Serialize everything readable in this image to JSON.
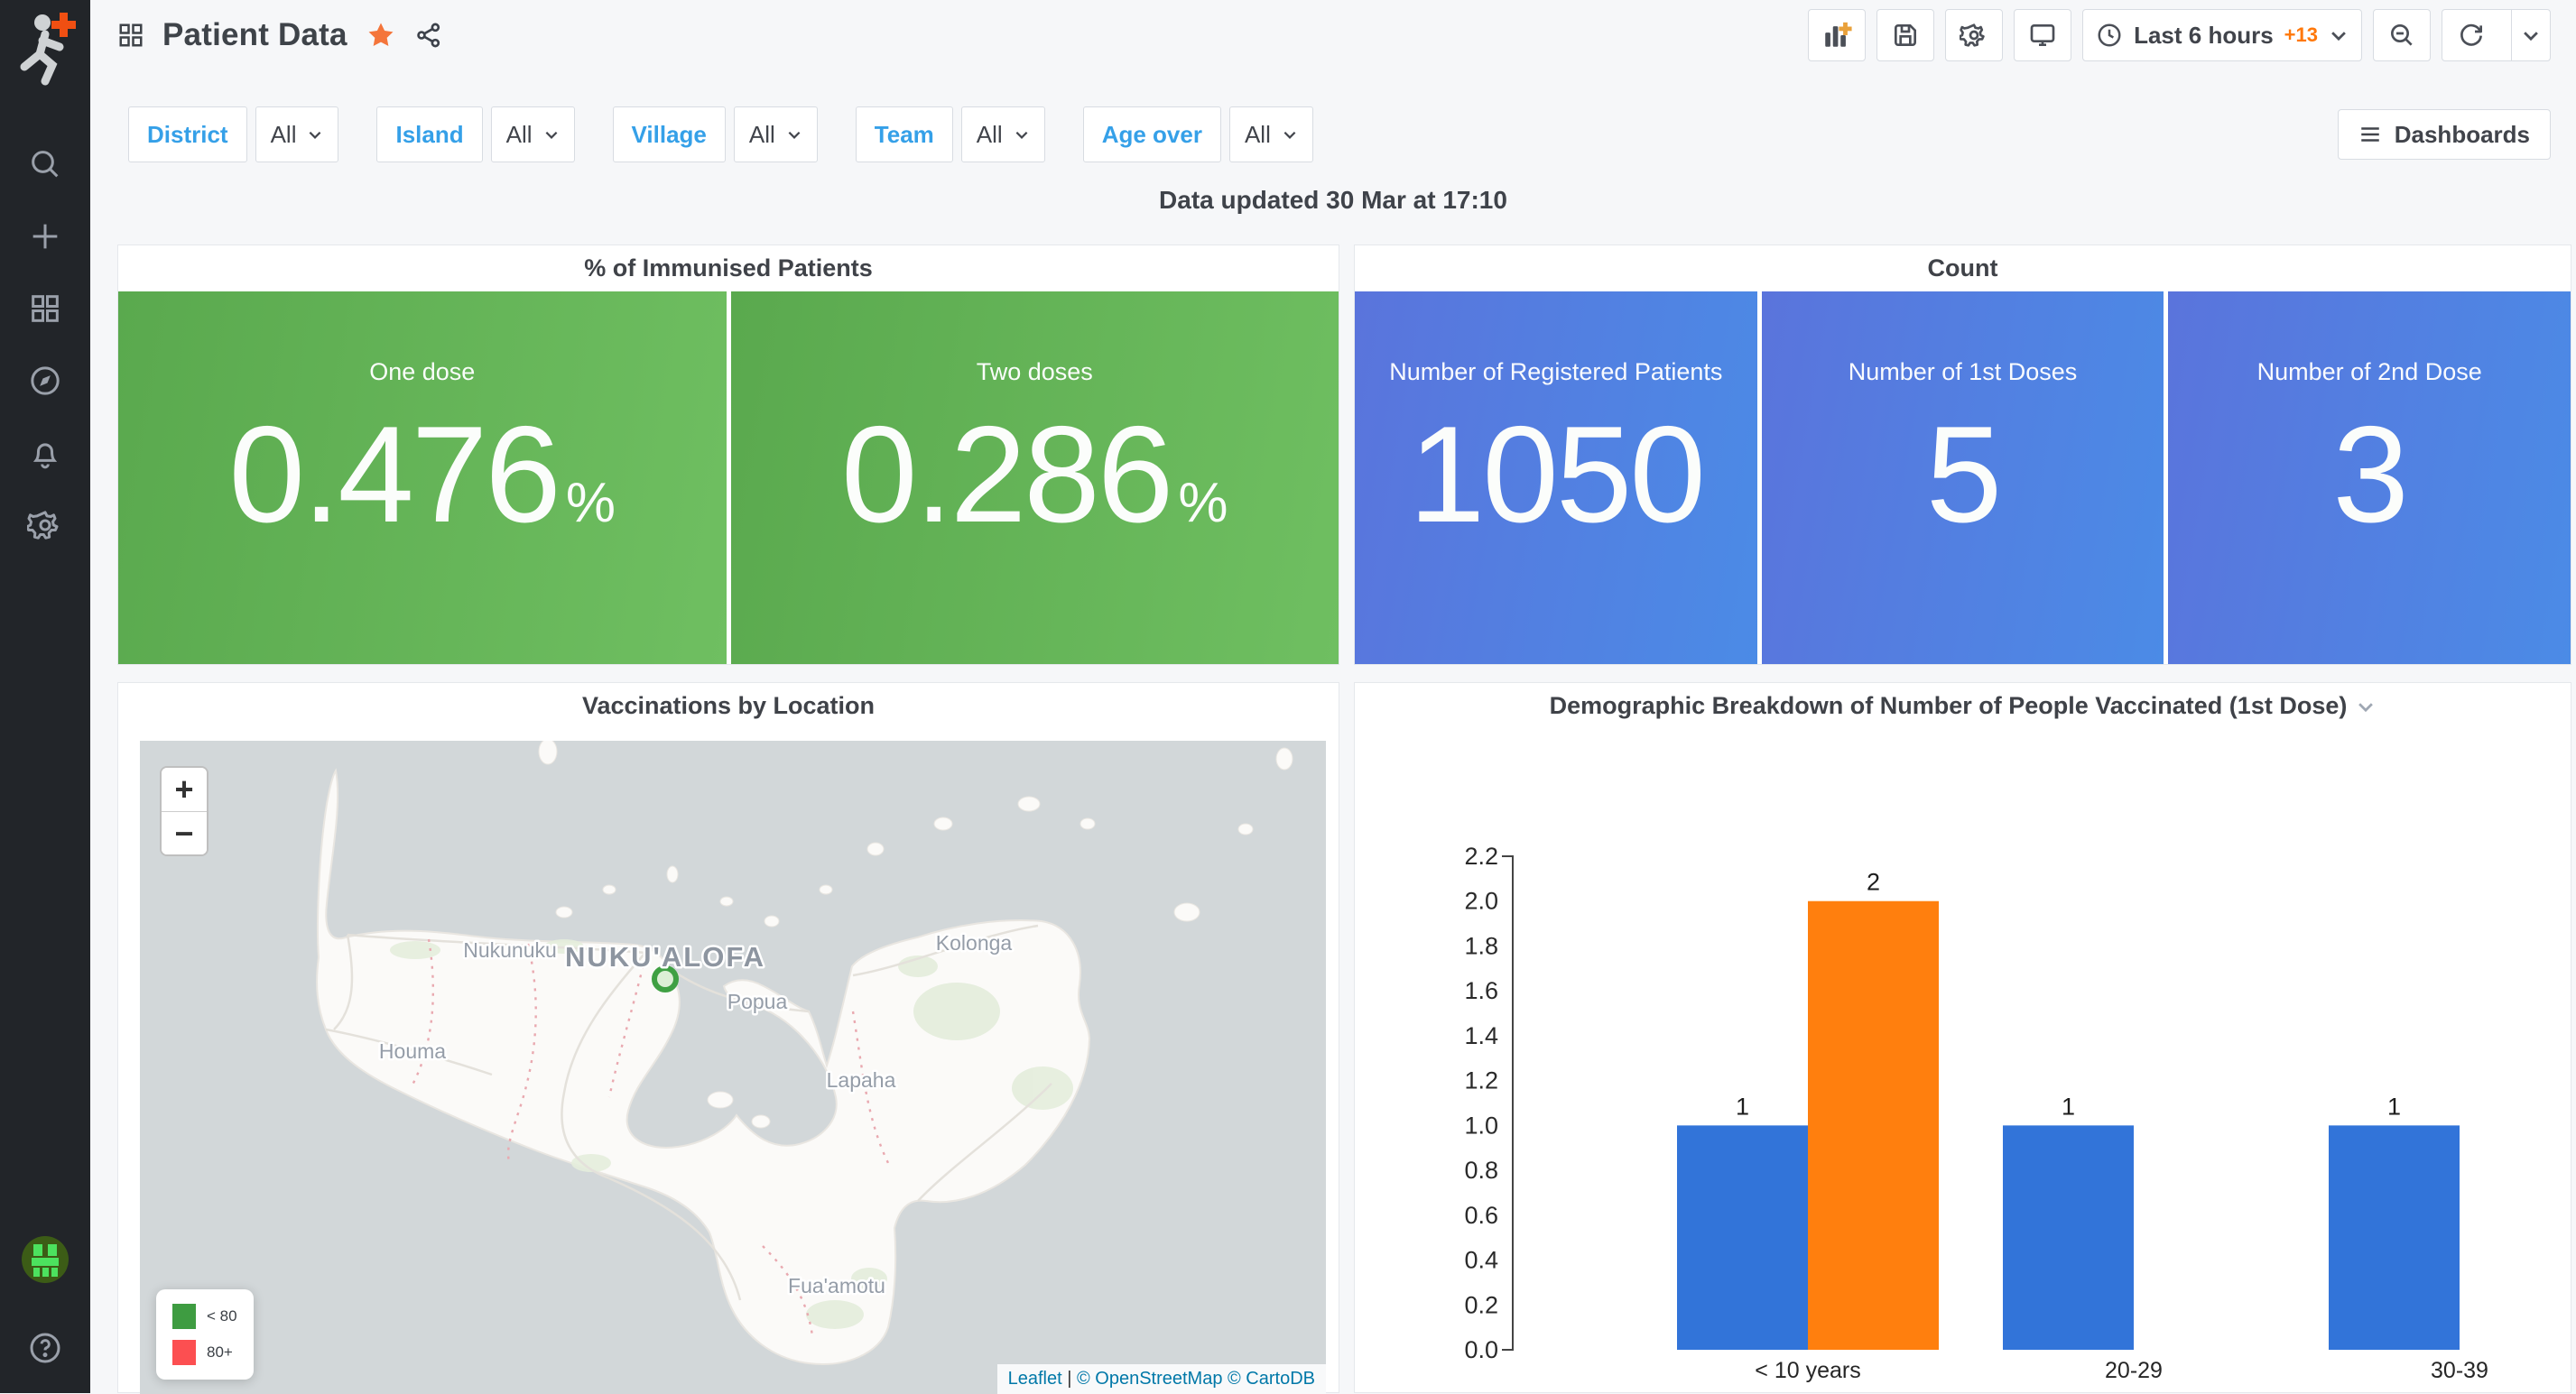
{
  "header": {
    "title": "Patient Data",
    "toolbar": {
      "time_range": "Last 6 hours",
      "time_extra": "+13"
    }
  },
  "filters": [
    {
      "label": "District",
      "value": "All"
    },
    {
      "label": "Island",
      "value": "All"
    },
    {
      "label": "Village",
      "value": "All"
    },
    {
      "label": "Team",
      "value": "All"
    },
    {
      "label": "Age over",
      "value": "All"
    }
  ],
  "dashboards_button_label": "Dashboards",
  "status_text": "Data updated 30 Mar at 17:10",
  "immunised_panel": {
    "title": "% of Immunised Patients",
    "tile_gradient": [
      "#5aa94e",
      "#6fbf61"
    ],
    "stats": [
      {
        "label": "One dose",
        "value": "0.476",
        "unit": "%"
      },
      {
        "label": "Two doses",
        "value": "0.286",
        "unit": "%"
      }
    ]
  },
  "count_panel": {
    "title": "Count",
    "tile_gradient": [
      "#5a74dc",
      "#4b8be6"
    ],
    "stats": [
      {
        "label": "Number of Registered Patients",
        "value": "1050"
      },
      {
        "label": "Number of 1st Doses",
        "value": "5"
      },
      {
        "label": "Number of 2nd Dose",
        "value": "3"
      }
    ]
  },
  "map_panel": {
    "title": "Vaccinations by Location",
    "zoom_in": "+",
    "zoom_out": "−",
    "places": {
      "nukunuku": "Nukunuku",
      "capital": "NUKU'ALOFA",
      "popua": "Popua",
      "houma": "Houma",
      "lapaha": "Lapaha",
      "kolonga": "Kolonga",
      "fuaamotu": "Fua'amotu"
    },
    "marker_color": "#3fa043",
    "legend": [
      {
        "label": "< 80",
        "color": "#3e9c41"
      },
      {
        "label": "80+",
        "color": "#fc4f51"
      }
    ],
    "attribution": {
      "leaflet": "Leaflet",
      "separator": "|",
      "osm": "© OpenStreetMap",
      "cartodb": "© CartoDB"
    }
  },
  "chart_panel": {
    "title": "Demographic Breakdown of Number of People Vaccinated (1st Dose)"
  },
  "chart_data": {
    "type": "bar",
    "title": "Demographic Breakdown of Number of People Vaccinated (1st Dose)",
    "categories": [
      "< 10 years",
      "20-29",
      "30-39"
    ],
    "series": [
      {
        "name": "series-blue",
        "color": "#3274d9",
        "values": [
          1,
          1,
          1
        ]
      },
      {
        "name": "series-orange",
        "color": "#ff7f0e",
        "values": [
          2,
          null,
          null
        ]
      }
    ],
    "xlabel": "",
    "ylabel": "",
    "ylim": [
      0,
      2.2
    ],
    "ytick_step": 0.2,
    "grid": false,
    "legend_position": "none",
    "value_labels": true
  }
}
